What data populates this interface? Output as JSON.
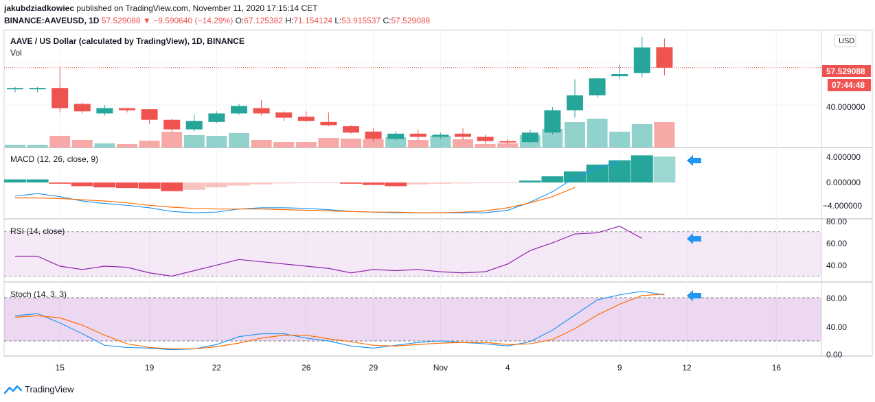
{
  "header": {
    "author": "jakubdziadkowiec",
    "published": " published on TradingView.com, November 11, 2020 17:15:14 CET",
    "symbol": "BINANCE:AAVEUSD, 1D",
    "price": "57.529088",
    "arrow": "▼",
    "change": "−9.590640 (−14.29%)",
    "o_label": "O:",
    "o_value": "67.125382",
    "h_label": "H:",
    "h_value": "71.154124",
    "l_label": "L:",
    "l_value": "53.915537",
    "c_label": "C:",
    "c_value": "57.529088"
  },
  "footer": {
    "brand": "TradingView"
  },
  "colors": {
    "up": "#26a69a",
    "down": "#ef5350",
    "accent": "#2196f3"
  },
  "chart_data": [
    {
      "type": "candlestick",
      "title": "AAVE / US Dollar (calculated by TradingView), 1D, BINANCE",
      "currency": "USD",
      "x_ticks": [
        "15",
        "19",
        "22",
        "26",
        "29",
        "Nov",
        "4",
        "9",
        "12",
        "16"
      ],
      "y_ticks": [
        "40.000000"
      ],
      "last_price": "57.529088",
      "countdown": "07:44:48",
      "candles": [
        {
          "o": 47.5,
          "h": 48.5,
          "l": 46.0,
          "c": 48.0
        },
        {
          "o": 47.5,
          "h": 48.5,
          "l": 46.0,
          "c": 48.0
        },
        {
          "o": 48.0,
          "h": 58.0,
          "l": 36.5,
          "c": 38.5
        },
        {
          "o": 40.5,
          "h": 41.0,
          "l": 36.0,
          "c": 37.0
        },
        {
          "o": 36.0,
          "h": 40.0,
          "l": 35.0,
          "c": 38.5
        },
        {
          "o": 38.5,
          "h": 38.5,
          "l": 36.5,
          "c": 37.5
        },
        {
          "o": 38.0,
          "h": 38.0,
          "l": 31.0,
          "c": 33.0
        },
        {
          "o": 33.0,
          "h": 33.5,
          "l": 27.0,
          "c": 28.5
        },
        {
          "o": 28.5,
          "h": 35.5,
          "l": 27.5,
          "c": 32.5
        },
        {
          "o": 32.0,
          "h": 37.0,
          "l": 31.5,
          "c": 36.0
        },
        {
          "o": 36.0,
          "h": 40.5,
          "l": 35.5,
          "c": 39.5
        },
        {
          "o": 38.5,
          "h": 42.5,
          "l": 35.0,
          "c": 36.0
        },
        {
          "o": 36.5,
          "h": 37.0,
          "l": 32.5,
          "c": 34.0
        },
        {
          "o": 34.5,
          "h": 37.0,
          "l": 32.0,
          "c": 32.5
        },
        {
          "o": 32.0,
          "h": 36.5,
          "l": 30.0,
          "c": 30.5
        },
        {
          "o": 30.0,
          "h": 30.5,
          "l": 26.5,
          "c": 27.0
        },
        {
          "o": 27.5,
          "h": 29.0,
          "l": 22.5,
          "c": 24.0
        },
        {
          "o": 24.0,
          "h": 27.5,
          "l": 23.0,
          "c": 26.5
        },
        {
          "o": 26.5,
          "h": 28.5,
          "l": 23.5,
          "c": 25.0
        },
        {
          "o": 25.0,
          "h": 27.0,
          "l": 24.0,
          "c": 26.0
        },
        {
          "o": 26.5,
          "h": 29.0,
          "l": 23.5,
          "c": 25.0
        },
        {
          "o": 25.0,
          "h": 26.0,
          "l": 21.5,
          "c": 23.0
        },
        {
          "o": 23.0,
          "h": 24.0,
          "l": 21.5,
          "c": 22.5
        },
        {
          "o": 22.5,
          "h": 28.5,
          "l": 22.0,
          "c": 27.0
        },
        {
          "o": 27.0,
          "h": 39.0,
          "l": 26.0,
          "c": 37.5
        },
        {
          "o": 37.5,
          "h": 52.0,
          "l": 34.0,
          "c": 44.5
        },
        {
          "o": 44.5,
          "h": 52.5,
          "l": 43.5,
          "c": 52.5
        },
        {
          "o": 53.5,
          "h": 59.0,
          "l": 52.0,
          "c": 54.5
        },
        {
          "o": 55.0,
          "h": 72.0,
          "l": 53.0,
          "c": 67.0
        },
        {
          "o": 67.1,
          "h": 71.2,
          "l": 53.9,
          "c": 57.5
        }
      ],
      "volume": [
        4,
        4,
        17,
        11,
        6,
        5,
        10,
        23,
        18,
        17,
        21,
        11,
        8,
        8,
        14,
        13,
        12,
        15,
        11,
        17,
        12,
        5,
        6,
        18,
        27,
        37,
        42,
        23,
        34,
        37
      ]
    },
    {
      "type": "bar",
      "title": "MACD (12, 26, close, 9)",
      "y_ticks": [
        "4.000000",
        "0.000000",
        "−4.000000"
      ],
      "ylim": [
        -6,
        5
      ],
      "histogram": [
        0.5,
        0.5,
        -0.2,
        -0.6,
        -0.8,
        -0.9,
        -1.0,
        -1.4,
        -1.2,
        -0.8,
        -0.5,
        -0.3,
        -0.15,
        -0.1,
        -0.05,
        -0.2,
        -0.4,
        -0.6,
        -0.3,
        -0.2,
        -0.15,
        -0.1,
        -0.05,
        0.3,
        1.0,
        1.8,
        2.9,
        3.6,
        4.4,
        4.2
      ],
      "macd": [
        -2.2,
        -1.8,
        -2.3,
        -3.0,
        -3.4,
        -3.7,
        -4.1,
        -4.7,
        -4.9,
        -4.8,
        -4.3,
        -4.1,
        -4.1,
        -4.2,
        -4.4,
        -4.7,
        -4.8,
        -4.9,
        -4.9,
        -4.9,
        -4.9,
        -4.9,
        -4.5,
        -3.2,
        -1.5,
        0.8,
        2.4,
        3.4
      ],
      "signal": [
        -2.5,
        -2.5,
        -2.6,
        -2.8,
        -3.0,
        -3.3,
        -3.7,
        -4.0,
        -4.2,
        -4.3,
        -4.3,
        -4.3,
        -4.4,
        -4.5,
        -4.6,
        -4.7,
        -4.8,
        -4.8,
        -4.9,
        -4.9,
        -4.8,
        -4.6,
        -4.1,
        -3.3,
        -2.3,
        -0.8
      ]
    },
    {
      "type": "line",
      "title": "RSI (14, close)",
      "y_ticks": [
        "80.00",
        "60.00",
        "40.00"
      ],
      "ylim": [
        25,
        82
      ],
      "bands": [
        30,
        70
      ],
      "rsi": [
        48,
        48,
        39,
        36,
        39,
        38,
        33,
        30,
        35,
        40,
        45,
        43,
        41,
        39,
        37,
        33,
        36,
        35,
        36,
        34,
        33,
        34,
        41,
        53,
        60,
        68,
        69,
        75,
        64
      ]
    },
    {
      "type": "line",
      "title": "Stoch (14, 3, 3)",
      "y_ticks": [
        "80.00",
        "40.00",
        "0.00"
      ],
      "ylim": [
        -2,
        97
      ],
      "bands": [
        20,
        80
      ],
      "k": [
        55,
        58,
        45,
        30,
        14,
        11,
        10,
        8,
        9,
        15,
        26,
        30,
        30,
        24,
        20,
        13,
        10,
        14,
        18,
        20,
        18,
        16,
        13,
        19,
        35,
        56,
        77,
        84,
        89,
        84
      ],
      "d": [
        53,
        55,
        52,
        42,
        28,
        16,
        11,
        9,
        9,
        12,
        17,
        24,
        28,
        28,
        23,
        19,
        14,
        13,
        15,
        17,
        18,
        18,
        15,
        16,
        22,
        37,
        56,
        71,
        83,
        85
      ]
    }
  ]
}
